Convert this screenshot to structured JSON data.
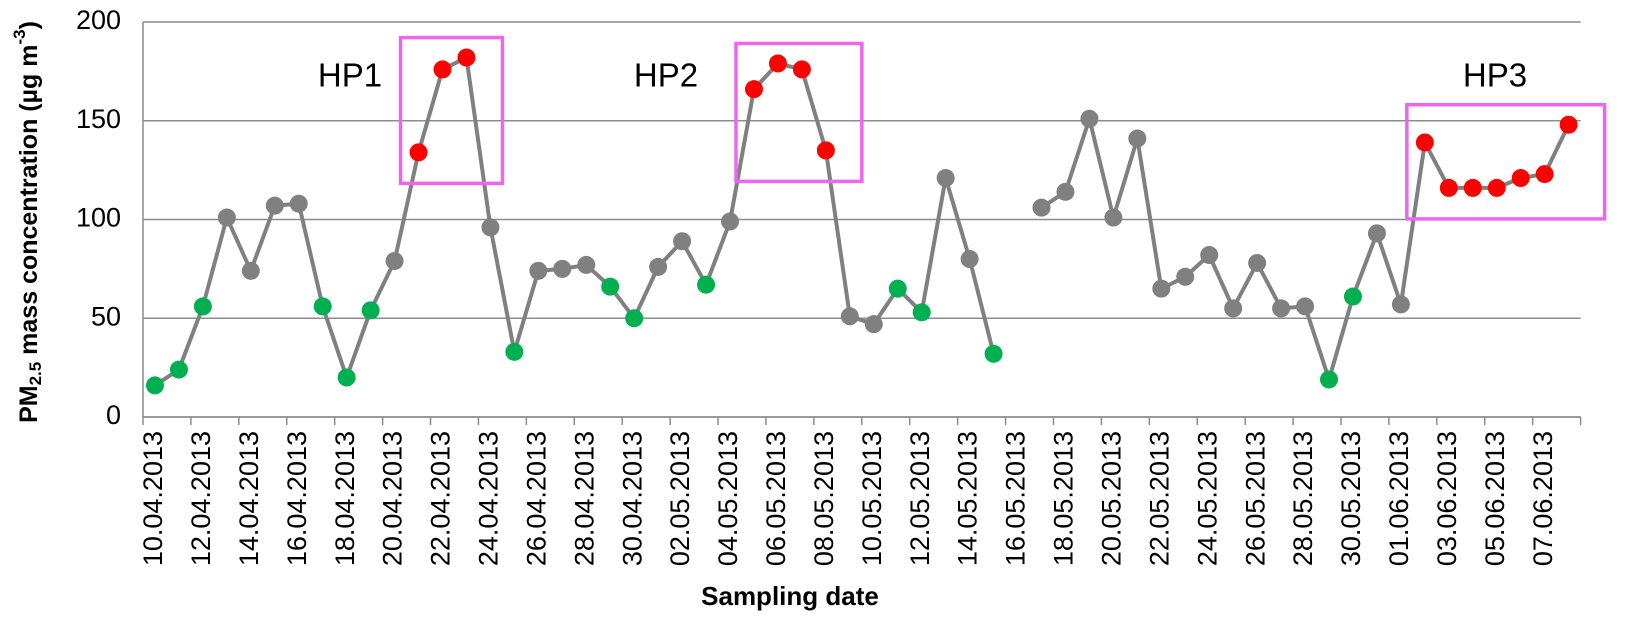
{
  "chart_data": {
    "type": "line",
    "xlabel": "Sampling date",
    "ylabel": {
      "main": "PM",
      "sub": "2.5",
      "rest": " mass concentration (µg m",
      "sup": "-3",
      "end": ")"
    },
    "categories": [
      "10.04.2013",
      null,
      "12.04.2013",
      null,
      "14.04.2013",
      null,
      "16.04.2013",
      null,
      "18.04.2013",
      null,
      "20.04.2013",
      null,
      "22.04.2013",
      null,
      "24.04.2013",
      null,
      "26.04.2013",
      null,
      "28.04.2013",
      null,
      "30.04.2013",
      null,
      "02.05.2013",
      null,
      "04.05.2013",
      null,
      "06.05.2013",
      null,
      "08.05.2013",
      null,
      "10.05.2013",
      null,
      "12.05.2013",
      null,
      "14.05.2013",
      null,
      "16.05.2013",
      null,
      "18.05.2013",
      null,
      "20.05.2013",
      null,
      "22.05.2013",
      null,
      "24.05.2013",
      null,
      "26.05.2013",
      null,
      "28.05.2013",
      null,
      "30.05.2013",
      null,
      "01.06.2013",
      null,
      "03.06.2013",
      null,
      "05.06.2013",
      null,
      "07.06.2013",
      null
    ],
    "series": [
      {
        "color": "#808080",
        "values": [
          16,
          24,
          56,
          101,
          74,
          107,
          108,
          56,
          20,
          54,
          79,
          134,
          176,
          182,
          96,
          33,
          74,
          75,
          77,
          66,
          50,
          76,
          89,
          67,
          99,
          166,
          179,
          176,
          135,
          51,
          47,
          65,
          53,
          121,
          80,
          32,
          null,
          106,
          114,
          151,
          101,
          141,
          65,
          71,
          82,
          55,
          78,
          55,
          56,
          19,
          61,
          93,
          57,
          139,
          116,
          116,
          116,
          121,
          123,
          148
        ],
        "point_colors": [
          "#00b050",
          "#00b050",
          "#00b050",
          "#808080",
          "#808080",
          "#808080",
          "#808080",
          "#00b050",
          "#00b050",
          "#00b050",
          "#808080",
          "#ff0000",
          "#ff0000",
          "#ff0000",
          "#808080",
          "#00b050",
          "#808080",
          "#808080",
          "#808080",
          "#00b050",
          "#00b050",
          "#808080",
          "#808080",
          "#00b050",
          "#808080",
          "#ff0000",
          "#ff0000",
          "#ff0000",
          "#ff0000",
          "#808080",
          "#808080",
          "#00b050",
          "#00b050",
          "#808080",
          "#808080",
          "#00b050",
          null,
          "#808080",
          "#808080",
          "#808080",
          "#808080",
          "#808080",
          "#808080",
          "#808080",
          "#808080",
          "#808080",
          "#808080",
          "#808080",
          "#808080",
          "#00b050",
          "#00b050",
          "#808080",
          "#808080",
          "#ff0000",
          "#ff0000",
          "#ff0000",
          "#ff0000",
          "#ff0000",
          "#ff0000",
          "#ff0000"
        ]
      }
    ],
    "highlight_color": "#ff0000",
    "annotations": [
      "HP1",
      "HP2",
      "HP3"
    ],
    "box_color": "#ee66ee",
    "ylim": [
      0,
      200
    ],
    "yticks": [
      0,
      50,
      100,
      150,
      200
    ],
    "grid": true
  }
}
